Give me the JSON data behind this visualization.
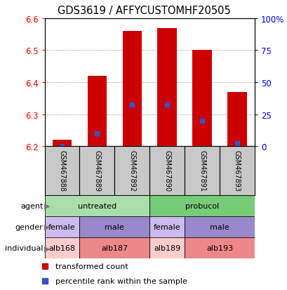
{
  "title": "GDS3619 / AFFYCUSTOMHF20505",
  "samples": [
    "GSM467888",
    "GSM467889",
    "GSM467892",
    "GSM467890",
    "GSM467891",
    "GSM467893"
  ],
  "bar_bottom": 6.2,
  "red_bar_tops": [
    6.22,
    6.42,
    6.56,
    6.57,
    6.5,
    6.37
  ],
  "blue_marker_vals": [
    6.2,
    6.24,
    6.33,
    6.33,
    6.28,
    6.21
  ],
  "ylim": [
    6.2,
    6.6
  ],
  "yticks_left": [
    6.2,
    6.3,
    6.4,
    6.5,
    6.6
  ],
  "yticks_right_pct": [
    0,
    25,
    50,
    75,
    100
  ],
  "ytick_right_labels": [
    "0",
    "25",
    "50",
    "75",
    "100%"
  ],
  "bar_width": 0.55,
  "bar_color": "#cc0000",
  "blue_color": "#3355cc",
  "grid_color": "#888888",
  "sample_box_color": "#c8c8c8",
  "annotation_rows": [
    {
      "label": "agent",
      "groups": [
        {
          "text": "untreated",
          "span": 3,
          "color": "#aaddaa"
        },
        {
          "text": "probucol",
          "span": 3,
          "color": "#77cc77"
        }
      ]
    },
    {
      "label": "gender",
      "groups": [
        {
          "text": "female",
          "span": 1,
          "color": "#ccbbee"
        },
        {
          "text": "male",
          "span": 2,
          "color": "#9988cc"
        },
        {
          "text": "female",
          "span": 1,
          "color": "#ccbbee"
        },
        {
          "text": "male",
          "span": 2,
          "color": "#9988cc"
        }
      ]
    },
    {
      "label": "individual",
      "groups": [
        {
          "text": "alb168",
          "span": 1,
          "color": "#ffcccc"
        },
        {
          "text": "alb187",
          "span": 2,
          "color": "#ee8888"
        },
        {
          "text": "alb189",
          "span": 1,
          "color": "#ffcccc"
        },
        {
          "text": "alb193",
          "span": 2,
          "color": "#ee8888"
        }
      ]
    }
  ],
  "legend": [
    {
      "label": "transformed count",
      "color": "#cc0000"
    },
    {
      "label": "percentile rank within the sample",
      "color": "#3355cc"
    }
  ]
}
